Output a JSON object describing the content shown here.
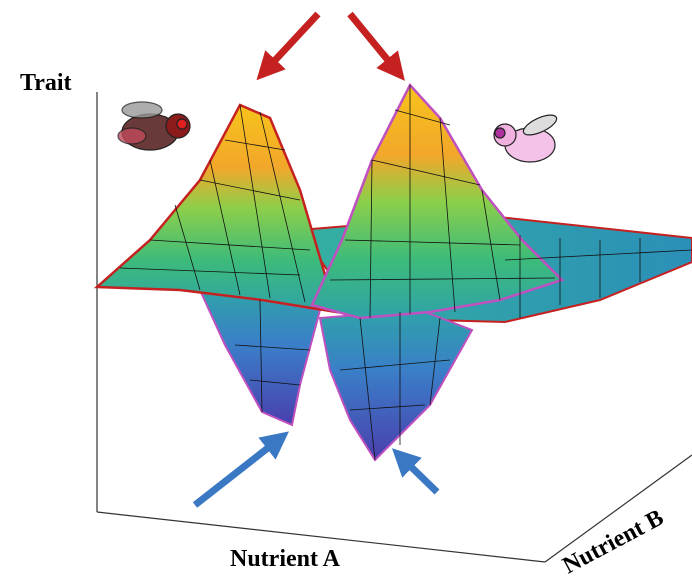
{
  "labels": {
    "y_axis": "Trait",
    "x_axis": "Nutrient A",
    "z_axis": "Nutrient B"
  }
}
